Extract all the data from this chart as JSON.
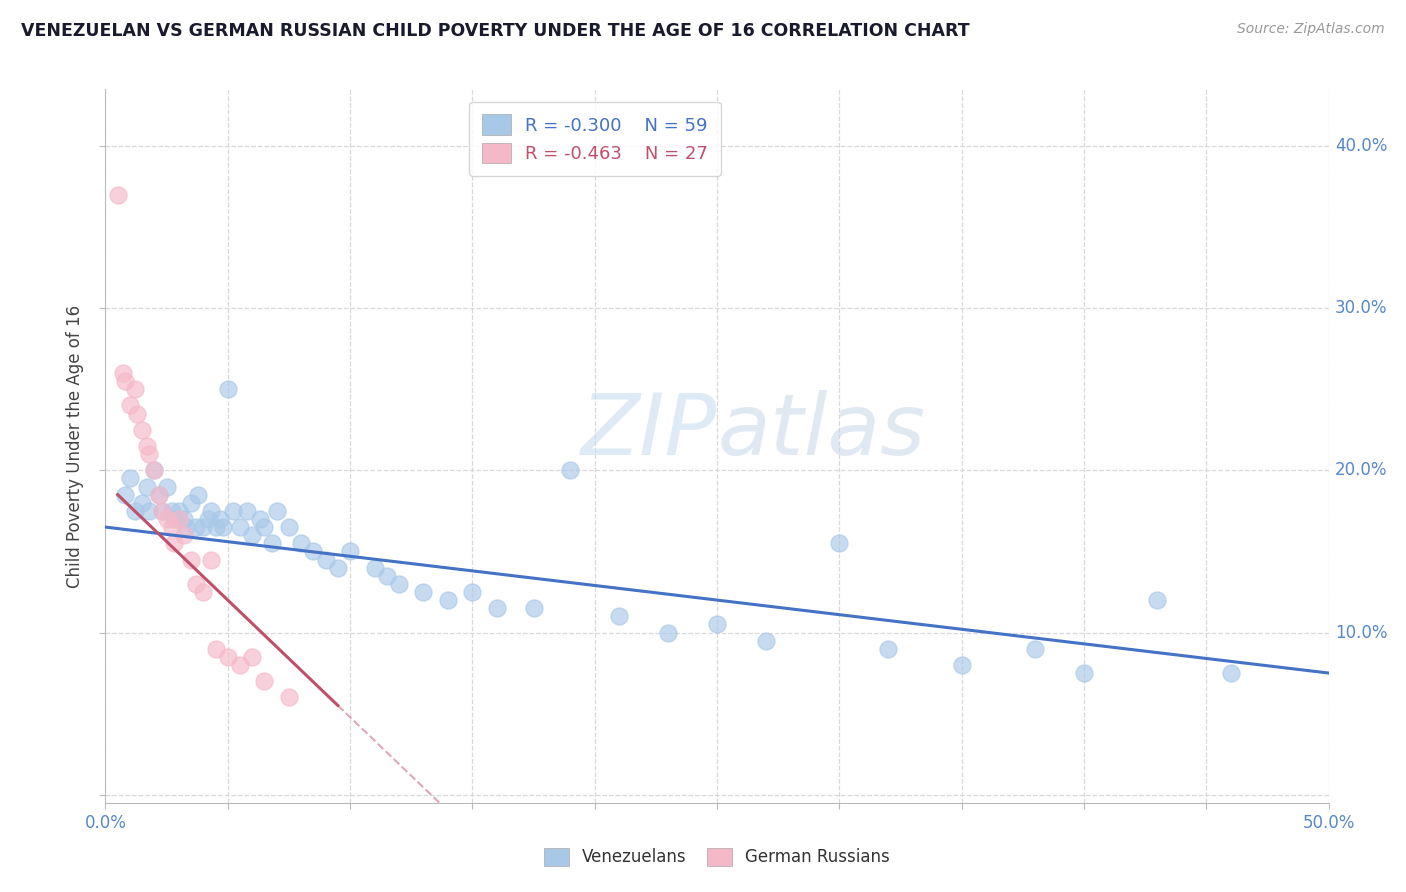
{
  "title": "VENEZUELAN VS GERMAN RUSSIAN CHILD POVERTY UNDER THE AGE OF 16 CORRELATION CHART",
  "source": "Source: ZipAtlas.com",
  "ylabel": "Child Poverty Under the Age of 16",
  "xlim": [
    0.0,
    0.5
  ],
  "ylim": [
    -0.005,
    0.435
  ],
  "xticks": [
    0.0,
    0.05,
    0.1,
    0.15,
    0.2,
    0.25,
    0.3,
    0.35,
    0.4,
    0.45,
    0.5
  ],
  "yticks": [
    0.0,
    0.1,
    0.2,
    0.3,
    0.4
  ],
  "xtick_labels_left": [
    "0.0%"
  ],
  "xtick_labels_right": [
    "50.0%"
  ],
  "ytick_labels_right": [
    "10.0%",
    "20.0%",
    "30.0%",
    "40.0%"
  ],
  "venezuelan_color": "#a8c8e8",
  "german_russian_color": "#f5b8c8",
  "venezuelan_line_color": "#4472c4",
  "german_russian_line_color": "#c0506a",
  "legend_r_venezuelan": "R = -0.300",
  "legend_n_venezuelan": "N = 59",
  "legend_r_german": "R = -0.463",
  "legend_n_german": "N = 27",
  "watermark": "ZIPatlas",
  "background_color": "#ffffff",
  "grid_color": "#d8d8d8",
  "venezuelan_x": [
    0.008,
    0.01,
    0.012,
    0.015,
    0.017,
    0.018,
    0.02,
    0.022,
    0.023,
    0.025,
    0.027,
    0.028,
    0.03,
    0.032,
    0.033,
    0.035,
    0.037,
    0.038,
    0.04,
    0.042,
    0.043,
    0.045,
    0.047,
    0.048,
    0.05,
    0.052,
    0.055,
    0.058,
    0.06,
    0.063,
    0.065,
    0.068,
    0.07,
    0.075,
    0.08,
    0.085,
    0.09,
    0.095,
    0.1,
    0.11,
    0.115,
    0.12,
    0.13,
    0.14,
    0.15,
    0.16,
    0.175,
    0.19,
    0.21,
    0.23,
    0.25,
    0.27,
    0.3,
    0.32,
    0.35,
    0.38,
    0.4,
    0.43,
    0.46
  ],
  "venezuelan_y": [
    0.185,
    0.195,
    0.175,
    0.18,
    0.19,
    0.175,
    0.2,
    0.185,
    0.175,
    0.19,
    0.175,
    0.17,
    0.175,
    0.17,
    0.165,
    0.18,
    0.165,
    0.185,
    0.165,
    0.17,
    0.175,
    0.165,
    0.17,
    0.165,
    0.25,
    0.175,
    0.165,
    0.175,
    0.16,
    0.17,
    0.165,
    0.155,
    0.175,
    0.165,
    0.155,
    0.15,
    0.145,
    0.14,
    0.15,
    0.14,
    0.135,
    0.13,
    0.125,
    0.12,
    0.125,
    0.115,
    0.115,
    0.2,
    0.11,
    0.1,
    0.105,
    0.095,
    0.155,
    0.09,
    0.08,
    0.09,
    0.075,
    0.12,
    0.075
  ],
  "german_russian_x": [
    0.005,
    0.007,
    0.008,
    0.01,
    0.012,
    0.013,
    0.015,
    0.017,
    0.018,
    0.02,
    0.022,
    0.023,
    0.025,
    0.027,
    0.028,
    0.03,
    0.032,
    0.035,
    0.037,
    0.04,
    0.043,
    0.045,
    0.05,
    0.055,
    0.06,
    0.065,
    0.075
  ],
  "german_russian_y": [
    0.37,
    0.26,
    0.255,
    0.24,
    0.25,
    0.235,
    0.225,
    0.215,
    0.21,
    0.2,
    0.185,
    0.175,
    0.17,
    0.165,
    0.155,
    0.17,
    0.16,
    0.145,
    0.13,
    0.125,
    0.145,
    0.09,
    0.085,
    0.08,
    0.085,
    0.07,
    0.06
  ],
  "ven_line_x0": 0.0,
  "ven_line_y0": 0.165,
  "ven_line_x1": 0.5,
  "ven_line_y1": 0.075,
  "gr_line_x0": 0.005,
  "gr_line_y0": 0.185,
  "gr_line_x1": 0.095,
  "gr_line_y1": 0.055
}
